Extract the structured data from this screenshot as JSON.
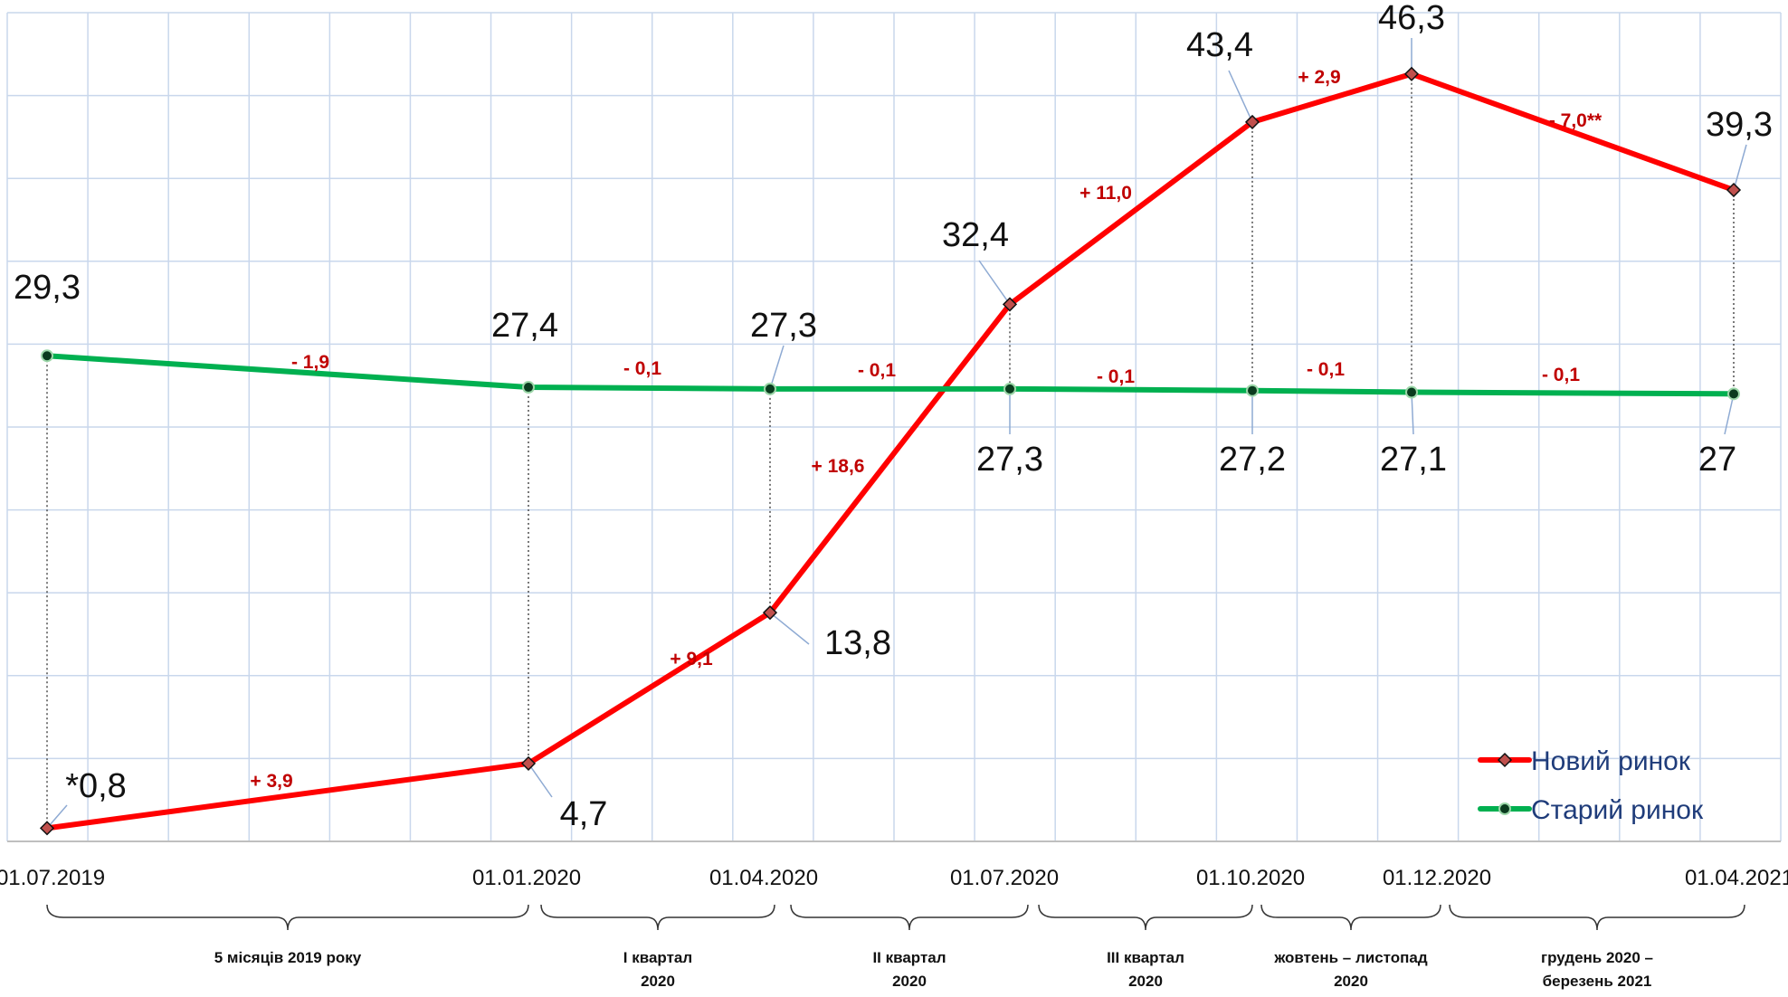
{
  "chart_data": {
    "type": "line",
    "x": [
      "01.07.2019",
      "01.01.2020",
      "01.04.2020",
      "01.07.2020",
      "01.10.2020",
      "01.12.2020",
      "01.04.2021"
    ],
    "series": [
      {
        "name": "Новий ринок",
        "color": "#ff0000",
        "values": [
          0.8,
          4.7,
          13.8,
          32.4,
          43.4,
          46.3,
          39.3
        ],
        "value_labels": [
          "*0,8",
          "4,7",
          "13,8",
          "32,4",
          "43,4",
          "46,3",
          "39,3"
        ],
        "change_labels": [
          "+ 3,9",
          "+ 9,1",
          "+ 18,6",
          "+ 11,0",
          "+ 2,9",
          "- 7,0**"
        ]
      },
      {
        "name": "Старий ринок",
        "color": "#00b050",
        "values": [
          29.3,
          27.4,
          27.3,
          27.3,
          27.2,
          27.1,
          27.0
        ],
        "value_labels": [
          "29,3",
          "27,4",
          "27,3",
          "27,3",
          "27,2",
          "27,1",
          "27"
        ],
        "change_labels": [
          "- 1,9",
          "- 0,1",
          "- 0,1",
          "- 0,1",
          "- 0,1",
          "- 0,1"
        ]
      }
    ],
    "ylim": [
      0,
      50
    ],
    "grid": true,
    "legend": "bottom-right",
    "periods": [
      [
        "5 місяців 2019 року"
      ],
      [
        "І квартал",
        "2020"
      ],
      [
        "ІІ квартал",
        "2020"
      ],
      [
        "ІІІ квартал",
        "2020"
      ],
      [
        "жовтень – листопад",
        "2020"
      ],
      [
        "грудень 2020 –",
        "березень 2021"
      ]
    ]
  }
}
